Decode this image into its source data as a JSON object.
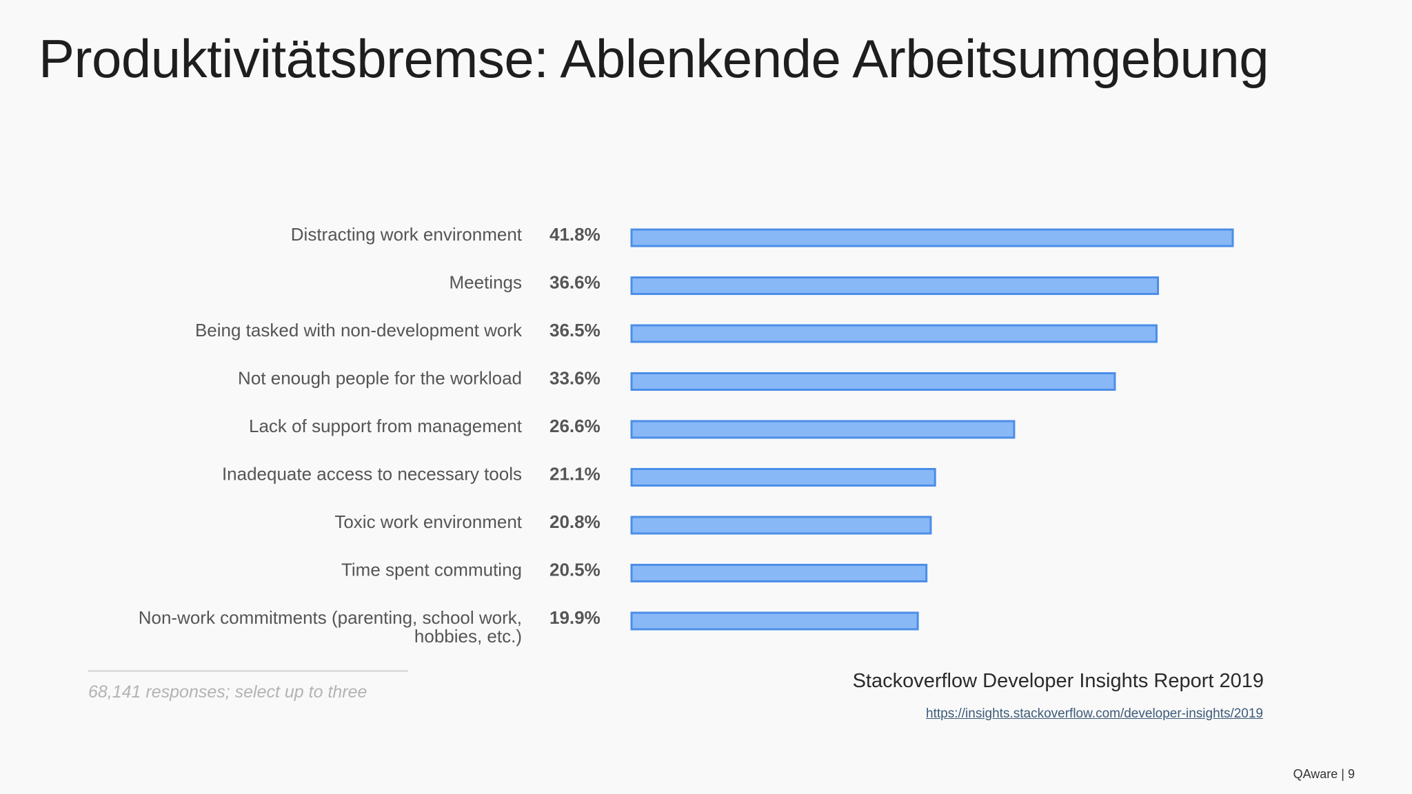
{
  "slide": {
    "title": "Produktivitätsbremse: Ablenkende Arbeitsumgebung",
    "footnote": "68,141 responses; select up to three",
    "source": "Stackoverflow Developer Insights Report 2019",
    "source_url": "https://insights.stackoverflow.com/developer-insights/2019",
    "footer": "QAware | 9"
  },
  "colors": {
    "bar_fill": "#89b8f7",
    "bar_stroke": "#4b8ee8"
  },
  "chart_data": {
    "type": "bar",
    "orientation": "horizontal",
    "title": "",
    "xlabel": "",
    "ylabel": "",
    "unit": "%",
    "xlim": [
      0,
      41.8
    ],
    "grid": false,
    "categories": [
      [
        "Distracting work environment"
      ],
      [
        "Meetings"
      ],
      [
        "Being tasked with non-development work"
      ],
      [
        "Not enough people for the workload"
      ],
      [
        "Lack of support from management"
      ],
      [
        "Inadequate access to necessary tools"
      ],
      [
        "Toxic work environment"
      ],
      [
        "Time spent commuting"
      ],
      [
        "Non-work commitments (parenting, school work,",
        "hobbies, etc.)"
      ]
    ],
    "values": [
      41.8,
      36.6,
      36.5,
      33.6,
      26.6,
      21.1,
      20.8,
      20.5,
      19.9
    ],
    "value_labels": [
      "41.8%",
      "36.6%",
      "36.5%",
      "33.6%",
      "26.6%",
      "21.1%",
      "20.8%",
      "20.5%",
      "19.9%"
    ]
  }
}
